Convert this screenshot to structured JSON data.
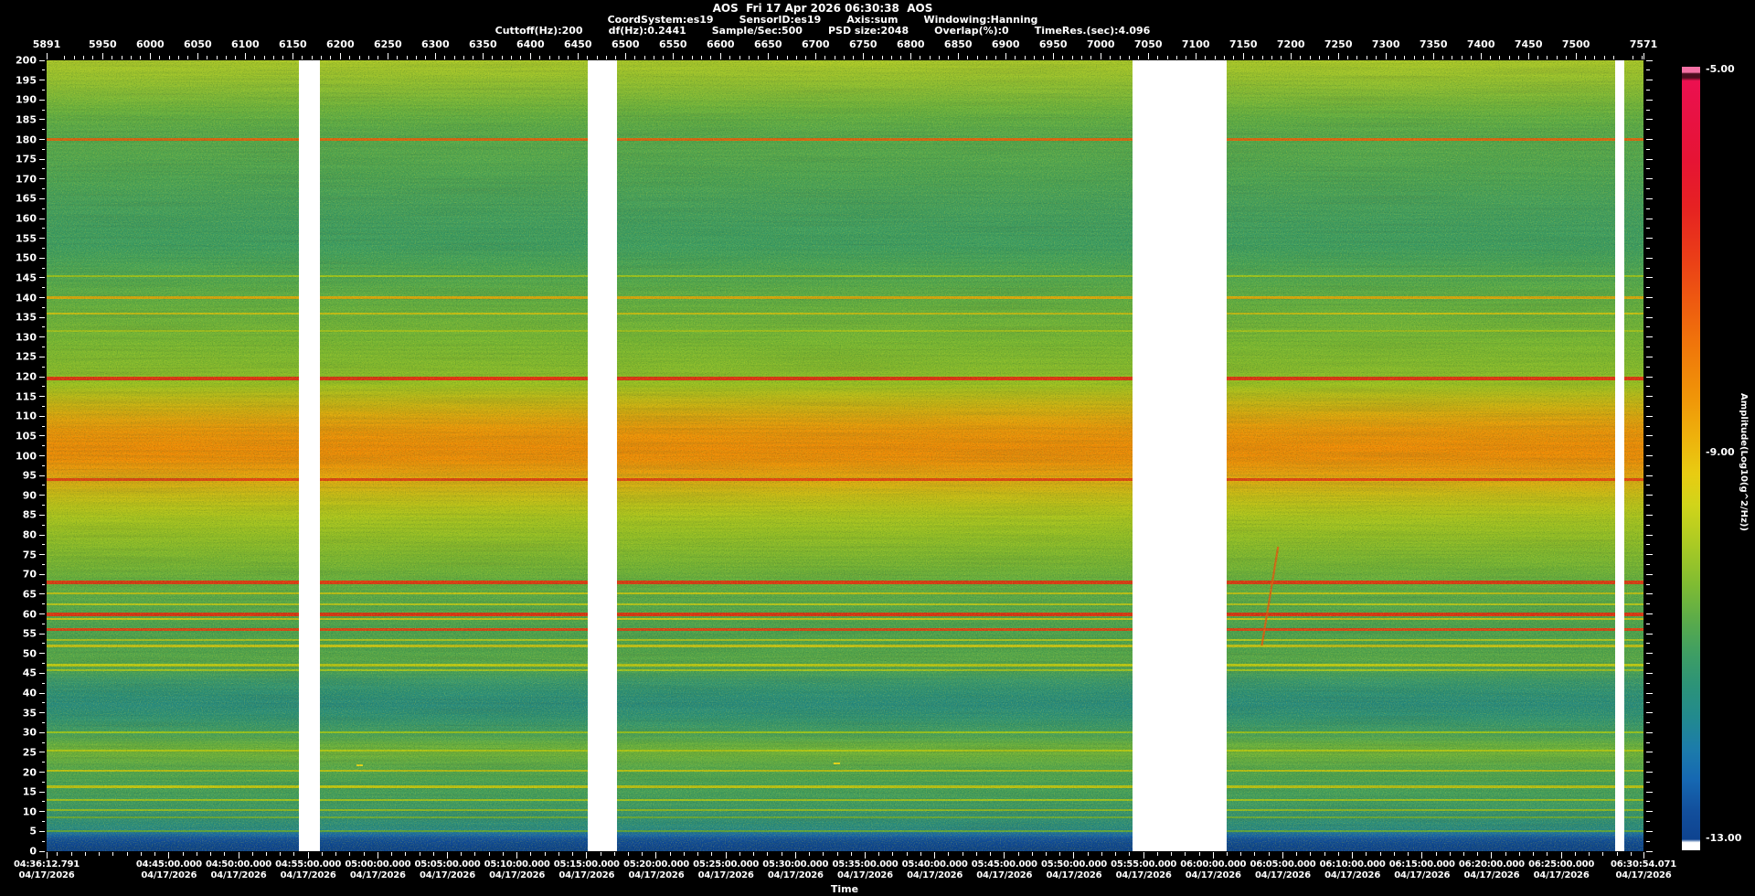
{
  "header": {
    "title": "AOS  Fri 17 Apr 2026 06:30:38  AOS",
    "params_line1": [
      "CoordSystem:es19",
      "SensorID:es19",
      "Axis:sum",
      "Windowing:Hanning"
    ],
    "params_line2": [
      "Cuttoff(Hz):200",
      "df(Hz):0.2441",
      "Sample/Sec:500",
      "PSD size:2048",
      "Overlap(%):0",
      "TimeRes.(sec):4.096"
    ]
  },
  "chart_data": {
    "type": "heatmap",
    "title": "AOS spectrogram 04/17/2026 04:36:12.791 - 06:30:54.071",
    "x_top_axis": {
      "values": [
        5891,
        5950,
        6000,
        6050,
        6100,
        6150,
        6200,
        6250,
        6300,
        6350,
        6400,
        6450,
        6500,
        6550,
        6600,
        6650,
        6700,
        6750,
        6800,
        6850,
        6900,
        6950,
        7000,
        7050,
        7100,
        7150,
        7200,
        7250,
        7300,
        7350,
        7400,
        7450,
        7500,
        7571
      ],
      "range": [
        5891,
        7571
      ],
      "minor_step": 10
    },
    "y_axis": {
      "min": 0,
      "max": 200,
      "label_step": 5,
      "minor_step": 2.5
    },
    "time_axis": {
      "title": "Time",
      "date": "04/17/2026",
      "start_label": "04:36:12.791",
      "end_label": "06:30:54.071",
      "total_seconds": 6881.28,
      "labels": [
        {
          "t": "04:36:12.791",
          "sec": 0
        },
        {
          "t": "04:45:00.000",
          "sec": 527.209
        },
        {
          "t": "04:50:00.000",
          "sec": 827.209
        },
        {
          "t": "04:55:00.000",
          "sec": 1127.209
        },
        {
          "t": "05:00:00.000",
          "sec": 1427.209
        },
        {
          "t": "05:05:00.000",
          "sec": 1727.209
        },
        {
          "t": "05:10:00.000",
          "sec": 2027.209
        },
        {
          "t": "05:15:00.000",
          "sec": 2327.209
        },
        {
          "t": "05:20:00.000",
          "sec": 2627.209
        },
        {
          "t": "05:25:00.000",
          "sec": 2927.209
        },
        {
          "t": "05:30:00.000",
          "sec": 3227.209
        },
        {
          "t": "05:35:00.000",
          "sec": 3527.209
        },
        {
          "t": "05:40:00.000",
          "sec": 3827.209
        },
        {
          "t": "05:45:00.000",
          "sec": 4127.209
        },
        {
          "t": "05:50:00.000",
          "sec": 4427.209
        },
        {
          "t": "05:55:00.000",
          "sec": 4727.209
        },
        {
          "t": "06:00:00.000",
          "sec": 5027.209
        },
        {
          "t": "06:05:00.000",
          "sec": 5327.209
        },
        {
          "t": "06:10:00.000",
          "sec": 5627.209
        },
        {
          "t": "06:15:00.000",
          "sec": 5927.209
        },
        {
          "t": "06:20:00.000",
          "sec": 6227.209
        },
        {
          "t": "06:25:00.000",
          "sec": 6527.209
        },
        {
          "t": "06:30:54.071",
          "sec": 6881.28
        }
      ]
    },
    "colorbar": {
      "label": "Amplitude(Log10(g^2/Hz))",
      "ticks": [
        "-5.00",
        "-9.00",
        "-13.00"
      ],
      "stops": [
        [
          0,
          "#f470a4"
        ],
        [
          0.7,
          "#f470a4"
        ],
        [
          0.9,
          "#4a0e1e"
        ],
        [
          1.4,
          "#4a0e1e"
        ],
        [
          1.8,
          "#ec1050"
        ],
        [
          6,
          "#e81244"
        ],
        [
          12,
          "#e61434"
        ],
        [
          18,
          "#e62222"
        ],
        [
          24,
          "#ea3c18"
        ],
        [
          30,
          "#ee5a10"
        ],
        [
          36,
          "#f0780a"
        ],
        [
          42,
          "#f09408"
        ],
        [
          47,
          "#eeb00c"
        ],
        [
          52,
          "#e8cc12"
        ],
        [
          56,
          "#d0d41a"
        ],
        [
          61,
          "#aaca24"
        ],
        [
          66,
          "#80bc32"
        ],
        [
          71,
          "#58aa4c"
        ],
        [
          75,
          "#3e9e64"
        ],
        [
          79,
          "#2c9378"
        ],
        [
          83,
          "#228a8e"
        ],
        [
          87,
          "#1c7caa"
        ],
        [
          91,
          "#1668b2"
        ],
        [
          95,
          "#124f9c"
        ],
        [
          98.6,
          "#0e4390"
        ],
        [
          99,
          "#ffffff"
        ],
        [
          100,
          "#ffffff"
        ]
      ]
    },
    "bands": [
      [
        200,
        "#aeca2a"
      ],
      [
        196,
        "#9cc42e"
      ],
      [
        192,
        "#86bc36"
      ],
      [
        188,
        "#6eb43e"
      ],
      [
        185,
        "#60ae46"
      ],
      [
        181,
        "#56a84e"
      ],
      [
        176,
        "#54a850"
      ],
      [
        170,
        "#4ca456"
      ],
      [
        164,
        "#45a05e"
      ],
      [
        158,
        "#3f9e63"
      ],
      [
        153,
        "#3d9e64"
      ],
      [
        149,
        "#46a35b"
      ],
      [
        145,
        "#50a852"
      ],
      [
        141,
        "#5cac48"
      ],
      [
        137,
        "#66b040"
      ],
      [
        133,
        "#70b43a"
      ],
      [
        129,
        "#78b834"
      ],
      [
        125,
        "#80ba30"
      ],
      [
        121,
        "#88bc2c"
      ],
      [
        118,
        "#9ec222"
      ],
      [
        115,
        "#bcba18"
      ],
      [
        112,
        "#d2ae10"
      ],
      [
        109,
        "#e4a00c"
      ],
      [
        106,
        "#ee9208"
      ],
      [
        102,
        "#f28a06"
      ],
      [
        99,
        "#f08c07"
      ],
      [
        96,
        "#ec9c0c"
      ],
      [
        93,
        "#dcae12"
      ],
      [
        90,
        "#cabc16"
      ],
      [
        87,
        "#bac41a"
      ],
      [
        84,
        "#aac620"
      ],
      [
        80,
        "#96c026"
      ],
      [
        76,
        "#84ba2e"
      ],
      [
        72,
        "#74b436"
      ],
      [
        68,
        "#64ae42"
      ],
      [
        64,
        "#5aaa4a"
      ],
      [
        60,
        "#52a650"
      ],
      [
        56,
        "#4ca252"
      ],
      [
        52,
        "#4ea450"
      ],
      [
        49,
        "#56a84c"
      ],
      [
        46.5,
        "#52a452"
      ],
      [
        45,
        "#46a05e"
      ],
      [
        43,
        "#389870"
      ],
      [
        40,
        "#2c907a"
      ],
      [
        37,
        "#288c80"
      ],
      [
        34,
        "#2e9278"
      ],
      [
        31,
        "#3c9a6a"
      ],
      [
        29,
        "#50a656"
      ],
      [
        27,
        "#66b042"
      ],
      [
        25,
        "#72b43a"
      ],
      [
        23,
        "#64ae44"
      ],
      [
        21,
        "#56a84e"
      ],
      [
        19,
        "#4ea452"
      ],
      [
        17,
        "#48a258"
      ],
      [
        15,
        "#44a05e"
      ],
      [
        13,
        "#429e62"
      ],
      [
        11,
        "#3c9a6a"
      ],
      [
        9,
        "#349274"
      ],
      [
        7,
        "#2c8e7e"
      ],
      [
        5.5,
        "#288a86"
      ],
      [
        4.6,
        "#1e74a0"
      ],
      [
        3.8,
        "#1660ac"
      ],
      [
        3,
        "#114e9e"
      ],
      [
        1.5,
        "#0c4494"
      ],
      [
        0,
        "#0a3f8e"
      ]
    ],
    "spectral_lines": [
      {
        "f": 180,
        "color": "#e8600e",
        "h": 3
      },
      {
        "f": 145.5,
        "color": "#a2c61c",
        "h": 2
      },
      {
        "f": 140,
        "color": "#e2a60a",
        "h": 3
      },
      {
        "f": 136,
        "color": "#cec012",
        "h": 2
      },
      {
        "f": 131.5,
        "color": "#a6c41e",
        "h": 2
      },
      {
        "f": 119.5,
        "color": "#e82812",
        "h": 4
      },
      {
        "f": 94,
        "color": "#e83c12",
        "h": 3
      },
      {
        "f": 68,
        "color": "#e83212",
        "h": 4
      },
      {
        "f": 65.3,
        "color": "#c6c414",
        "h": 2
      },
      {
        "f": 62.5,
        "color": "#bec81a",
        "h": 2
      },
      {
        "f": 60,
        "color": "#e82a10",
        "h": 4
      },
      {
        "f": 58.8,
        "color": "#d2c214",
        "h": 2
      },
      {
        "f": 56,
        "color": "#e83c12",
        "h": 3
      },
      {
        "f": 53.5,
        "color": "#b6c81e",
        "h": 2
      },
      {
        "f": 51.8,
        "color": "#ccc414",
        "h": 3
      },
      {
        "f": 47,
        "color": "#c2ca14",
        "h": 3
      },
      {
        "f": 45.8,
        "color": "#a8c822",
        "h": 2
      },
      {
        "f": 30,
        "color": "#9cc61c",
        "h": 2
      },
      {
        "f": 25.5,
        "color": "#b2c816",
        "h": 2
      },
      {
        "f": 20.3,
        "color": "#c2c412",
        "h": 2
      },
      {
        "f": 16.3,
        "color": "#c8c810",
        "h": 3
      },
      {
        "f": 13,
        "color": "#a8c41c",
        "h": 2
      },
      {
        "f": 10.5,
        "color": "#96bc20",
        "h": 2
      },
      {
        "f": 8.6,
        "color": "#6cac38",
        "h": 2
      },
      {
        "f": 5.2,
        "color": "#62a83e",
        "h": 2
      }
    ],
    "gaps": [
      {
        "start_frac": 0.158,
        "end_frac": 0.171
      },
      {
        "start_frac": 0.339,
        "end_frac": 0.357
      },
      {
        "start_frac": 0.68,
        "end_frac": 0.739
      },
      {
        "start_frac": 0.982,
        "end_frac": 0.988
      }
    ],
    "chirp": {
      "x1_frac": 0.761,
      "f1": 52,
      "x2_frac": 0.7712,
      "f2": 77,
      "color": "#e85a10"
    },
    "marks": [
      {
        "x_frac": 0.194,
        "f": 22
      },
      {
        "x_frac": 0.493,
        "f": 22.5
      }
    ]
  }
}
